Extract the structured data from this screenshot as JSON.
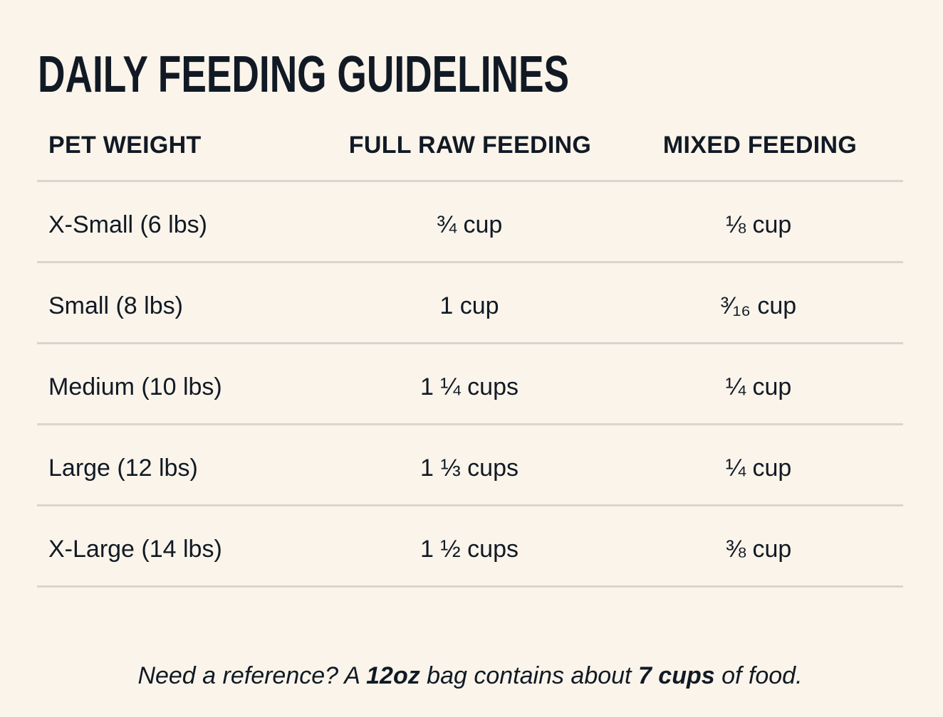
{
  "title": "DAILY FEEDING GUIDELINES",
  "table": {
    "headers": {
      "weight": "PET WEIGHT",
      "full": "FULL RAW FEEDING",
      "mixed": "MIXED FEEDING"
    },
    "rows": [
      {
        "weight": "X-Small (6 lbs)",
        "full": "¾ cup",
        "mixed": "⅛ cup"
      },
      {
        "weight": "Small (8 lbs)",
        "full": "1 cup",
        "mixed": "³⁄₁₆ cup"
      },
      {
        "weight": "Medium (10 lbs)",
        "full": "1 ¼ cups",
        "mixed": "¼ cup"
      },
      {
        "weight": "Large (12 lbs)",
        "full": "1 ⅓ cups",
        "mixed": "¼ cup"
      },
      {
        "weight": "X-Large (14 lbs)",
        "full": "1 ½ cups",
        "mixed": "⅜ cup"
      }
    ]
  },
  "footnote": {
    "part1": "Need a reference? A ",
    "bold1": "12oz",
    "part2": " bag contains about ",
    "bold2": "7 cups",
    "part3": " of food."
  },
  "colors": {
    "background": "#FAF4EB",
    "text": "#111A24",
    "divider": "#D8D5CE"
  }
}
